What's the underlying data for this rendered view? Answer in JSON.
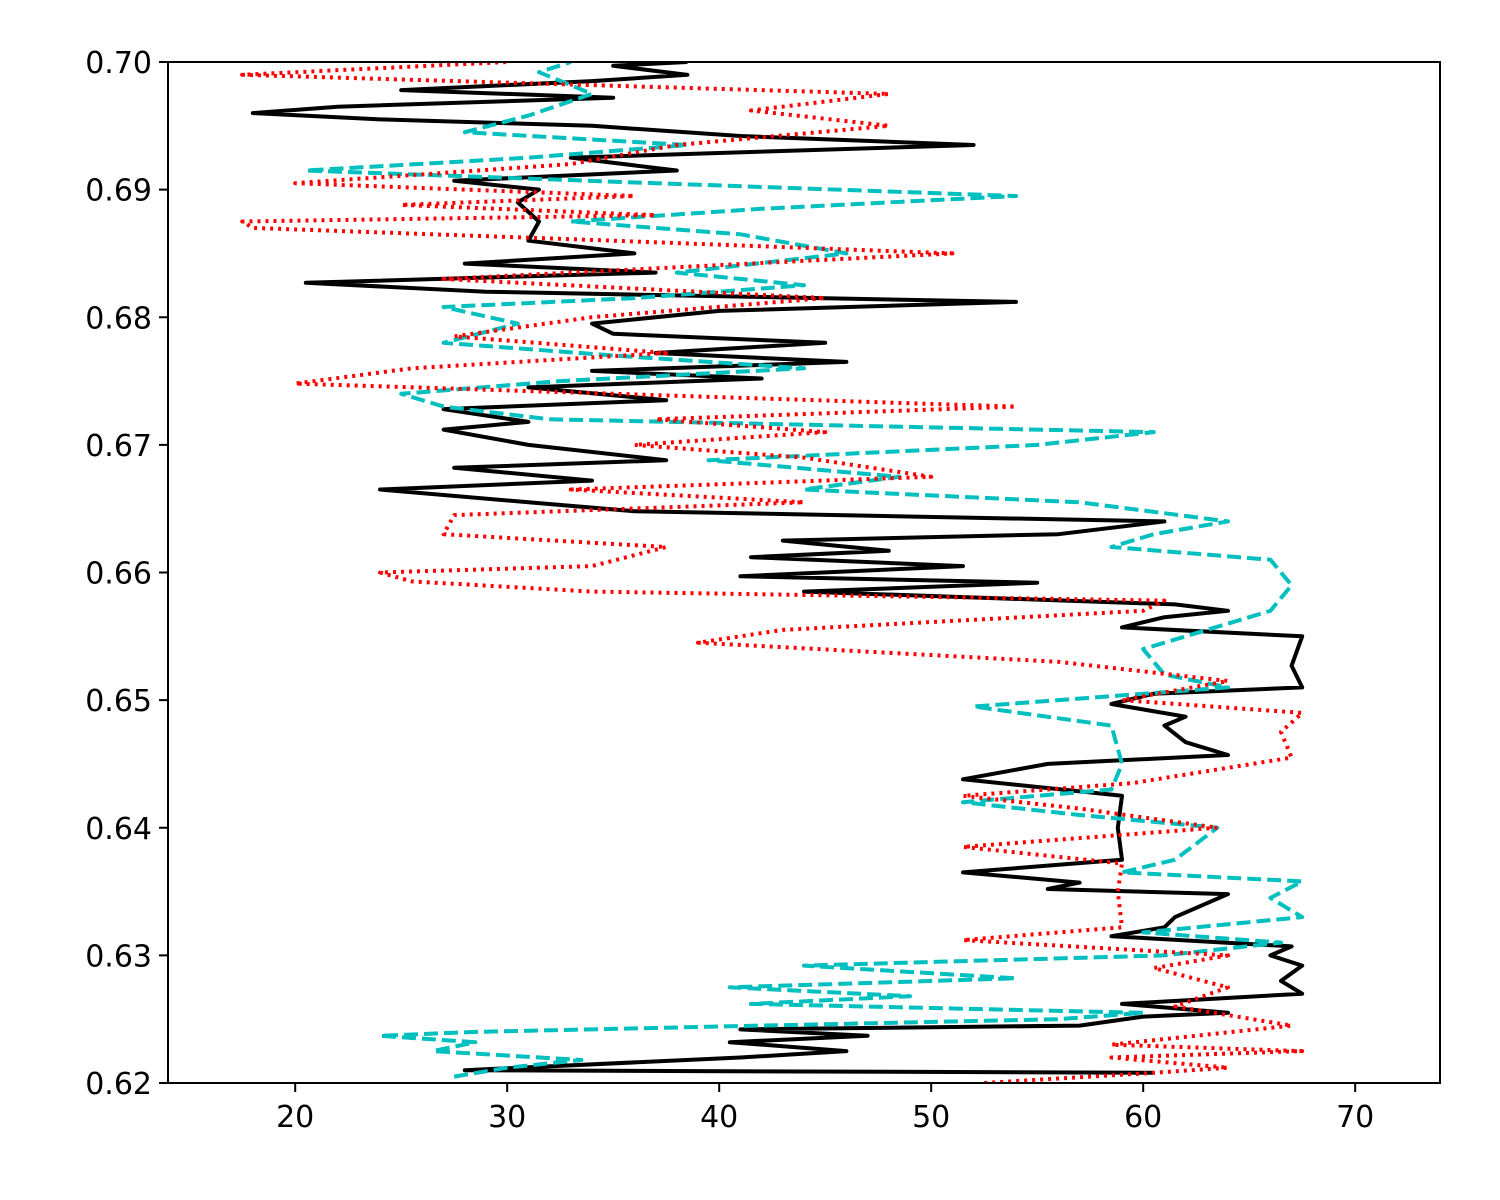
{
  "chart_data": {
    "type": "line",
    "title": "",
    "xlabel": "",
    "ylabel": "",
    "xlim": [
      14,
      74
    ],
    "ylim": [
      0.62,
      0.7
    ],
    "xticks": [
      "20",
      "30",
      "40",
      "50",
      "60",
      "70"
    ],
    "yticks": [
      "0.62",
      "0.63",
      "0.64",
      "0.65",
      "0.66",
      "0.67",
      "0.68",
      "0.69",
      "0.70"
    ],
    "grid": false,
    "legend": "none",
    "series": [
      {
        "key": "black-solid",
        "color": "#000000",
        "linestyle": "solid",
        "points": [
          [
            60.5,
            0.6208
          ],
          [
            28.0,
            0.621
          ],
          [
            41.0,
            0.622
          ],
          [
            46.0,
            0.6225
          ],
          [
            40.5,
            0.6232
          ],
          [
            47.0,
            0.6237
          ],
          [
            41.0,
            0.6242
          ],
          [
            57.0,
            0.6245
          ],
          [
            60.0,
            0.6252
          ],
          [
            64.0,
            0.6255
          ],
          [
            59.0,
            0.6262
          ],
          [
            67.5,
            0.627
          ],
          [
            66.5,
            0.628
          ],
          [
            67.5,
            0.6292
          ],
          [
            66.0,
            0.63
          ],
          [
            67.0,
            0.6307
          ],
          [
            58.5,
            0.6315
          ],
          [
            61.0,
            0.6322
          ],
          [
            61.5,
            0.633
          ],
          [
            64.0,
            0.6348
          ],
          [
            55.5,
            0.6352
          ],
          [
            57.0,
            0.6357
          ],
          [
            51.5,
            0.6365
          ],
          [
            59.0,
            0.6375
          ],
          [
            58.8,
            0.64
          ],
          [
            59.0,
            0.6425
          ],
          [
            51.5,
            0.6438
          ],
          [
            55.5,
            0.645
          ],
          [
            64.0,
            0.6457
          ],
          [
            62.0,
            0.6467
          ],
          [
            61.0,
            0.648
          ],
          [
            62.0,
            0.6487
          ],
          [
            58.5,
            0.6497
          ],
          [
            60.5,
            0.6505
          ],
          [
            67.5,
            0.651
          ],
          [
            67.0,
            0.6527
          ],
          [
            67.5,
            0.655
          ],
          [
            59.0,
            0.6557
          ],
          [
            61.0,
            0.6565
          ],
          [
            64.0,
            0.657
          ],
          [
            61.5,
            0.6575
          ],
          [
            44.0,
            0.6585
          ],
          [
            55.0,
            0.6592
          ],
          [
            41.0,
            0.6597
          ],
          [
            51.5,
            0.6605
          ],
          [
            41.5,
            0.6612
          ],
          [
            48.0,
            0.6617
          ],
          [
            43.0,
            0.6625
          ],
          [
            56.0,
            0.663
          ],
          [
            61.0,
            0.664
          ],
          [
            36.0,
            0.6648
          ],
          [
            31.0,
            0.6655
          ],
          [
            24.0,
            0.6665
          ],
          [
            34.0,
            0.6672
          ],
          [
            27.5,
            0.6682
          ],
          [
            37.5,
            0.6688
          ],
          [
            31.0,
            0.67
          ],
          [
            27.0,
            0.6712
          ],
          [
            31.0,
            0.6718
          ],
          [
            27.0,
            0.6728
          ],
          [
            37.5,
            0.6735
          ],
          [
            31.0,
            0.6745
          ],
          [
            42.0,
            0.6752
          ],
          [
            34.0,
            0.6758
          ],
          [
            46.0,
            0.6765
          ],
          [
            37.0,
            0.6772
          ],
          [
            45.0,
            0.678
          ],
          [
            35.0,
            0.6787
          ],
          [
            34.0,
            0.6795
          ],
          [
            40.0,
            0.6805
          ],
          [
            54.0,
            0.6812
          ],
          [
            29.0,
            0.682
          ],
          [
            20.5,
            0.6827
          ],
          [
            37.0,
            0.6835
          ],
          [
            28.0,
            0.6842
          ],
          [
            36.0,
            0.685
          ],
          [
            31.0,
            0.686
          ],
          [
            31.5,
            0.6875
          ],
          [
            30.5,
            0.689
          ],
          [
            31.5,
            0.69
          ],
          [
            27.5,
            0.6907
          ],
          [
            38.0,
            0.6915
          ],
          [
            33.0,
            0.6925
          ],
          [
            52.0,
            0.6935
          ],
          [
            41.0,
            0.6942
          ],
          [
            34.0,
            0.695
          ],
          [
            24.0,
            0.6955
          ],
          [
            18.0,
            0.696
          ],
          [
            22.0,
            0.6965
          ],
          [
            35.0,
            0.6972
          ],
          [
            25.0,
            0.6978
          ],
          [
            34.0,
            0.6985
          ],
          [
            38.5,
            0.699
          ],
          [
            35.0,
            0.6997
          ],
          [
            38.5,
            0.7
          ]
        ]
      },
      {
        "key": "cyan-dashed",
        "color": "#00bfbf",
        "linestyle": "dashed",
        "points": [
          [
            27.5,
            0.6205
          ],
          [
            30.0,
            0.6212
          ],
          [
            33.5,
            0.6218
          ],
          [
            26.5,
            0.6225
          ],
          [
            28.5,
            0.6232
          ],
          [
            24.0,
            0.6237
          ],
          [
            28.5,
            0.624
          ],
          [
            42.0,
            0.6245
          ],
          [
            56.0,
            0.625
          ],
          [
            60.0,
            0.6255
          ],
          [
            41.5,
            0.6262
          ],
          [
            49.0,
            0.6268
          ],
          [
            40.5,
            0.6275
          ],
          [
            54.0,
            0.6282
          ],
          [
            44.0,
            0.6292
          ],
          [
            61.0,
            0.63
          ],
          [
            66.5,
            0.631
          ],
          [
            60.0,
            0.6318
          ],
          [
            67.5,
            0.633
          ],
          [
            66.0,
            0.6345
          ],
          [
            67.5,
            0.6358
          ],
          [
            59.0,
            0.6365
          ],
          [
            61.5,
            0.6375
          ],
          [
            63.5,
            0.64
          ],
          [
            57.0,
            0.641
          ],
          [
            51.5,
            0.642
          ],
          [
            58.5,
            0.643
          ],
          [
            59.0,
            0.645
          ],
          [
            58.5,
            0.648
          ],
          [
            52.0,
            0.6495
          ],
          [
            64.0,
            0.651
          ],
          [
            61.0,
            0.652
          ],
          [
            60.0,
            0.654
          ],
          [
            66.0,
            0.657
          ],
          [
            67.0,
            0.659
          ],
          [
            66.0,
            0.661
          ],
          [
            58.5,
            0.662
          ],
          [
            60.5,
            0.663
          ],
          [
            64.0,
            0.664
          ],
          [
            57.0,
            0.6655
          ],
          [
            44.0,
            0.6665
          ],
          [
            48.5,
            0.6675
          ],
          [
            39.5,
            0.6688
          ],
          [
            55.0,
            0.67
          ],
          [
            60.5,
            0.671
          ],
          [
            32.0,
            0.672
          ],
          [
            27.0,
            0.673
          ],
          [
            25.0,
            0.674
          ],
          [
            32.5,
            0.675
          ],
          [
            44.0,
            0.676
          ],
          [
            35.0,
            0.677
          ],
          [
            27.0,
            0.678
          ],
          [
            30.5,
            0.6795
          ],
          [
            27.0,
            0.6808
          ],
          [
            36.0,
            0.6815
          ],
          [
            44.0,
            0.6825
          ],
          [
            38.0,
            0.6835
          ],
          [
            46.0,
            0.685
          ],
          [
            41.0,
            0.6865
          ],
          [
            33.0,
            0.6875
          ],
          [
            42.0,
            0.6885
          ],
          [
            54.0,
            0.6895
          ],
          [
            37.0,
            0.6905
          ],
          [
            20.5,
            0.6915
          ],
          [
            31.0,
            0.6925
          ],
          [
            38.5,
            0.6935
          ],
          [
            28.0,
            0.6945
          ],
          [
            31.0,
            0.6958
          ],
          [
            34.0,
            0.6975
          ],
          [
            31.5,
            0.6992
          ],
          [
            33.0,
            0.7
          ]
        ]
      },
      {
        "key": "red-dotted",
        "color": "#ff0000",
        "linestyle": "dotted",
        "points": [
          [
            52.5,
            0.62
          ],
          [
            60.5,
            0.6208
          ],
          [
            64.0,
            0.6212
          ],
          [
            58.5,
            0.622
          ],
          [
            67.5,
            0.6225
          ],
          [
            58.5,
            0.623
          ],
          [
            67.0,
            0.6245
          ],
          [
            61.5,
            0.626
          ],
          [
            64.0,
            0.6275
          ],
          [
            60.5,
            0.629
          ],
          [
            64.0,
            0.63
          ],
          [
            51.5,
            0.6312
          ],
          [
            59.0,
            0.6322
          ],
          [
            58.8,
            0.635
          ],
          [
            59.0,
            0.6372
          ],
          [
            51.5,
            0.6385
          ],
          [
            63.5,
            0.64
          ],
          [
            57.0,
            0.6415
          ],
          [
            51.5,
            0.6425
          ],
          [
            59.5,
            0.6435
          ],
          [
            67.0,
            0.6455
          ],
          [
            66.5,
            0.6475
          ],
          [
            67.5,
            0.649
          ],
          [
            59.0,
            0.65
          ],
          [
            64.0,
            0.6515
          ],
          [
            56.0,
            0.653
          ],
          [
            39.0,
            0.6545
          ],
          [
            43.0,
            0.6555
          ],
          [
            60.0,
            0.657
          ],
          [
            61.0,
            0.6578
          ],
          [
            34.0,
            0.6585
          ],
          [
            25.5,
            0.6593
          ],
          [
            24.0,
            0.66
          ],
          [
            34.0,
            0.6605
          ],
          [
            37.5,
            0.662
          ],
          [
            27.0,
            0.663
          ],
          [
            27.5,
            0.6645
          ],
          [
            44.0,
            0.6655
          ],
          [
            33.0,
            0.6665
          ],
          [
            50.0,
            0.6675
          ],
          [
            44.0,
            0.669
          ],
          [
            36.0,
            0.67
          ],
          [
            45.0,
            0.671
          ],
          [
            37.0,
            0.672
          ],
          [
            54.0,
            0.673
          ],
          [
            20.0,
            0.6748
          ],
          [
            25.5,
            0.676
          ],
          [
            37.5,
            0.6772
          ],
          [
            27.5,
            0.6785
          ],
          [
            34.0,
            0.68
          ],
          [
            45.0,
            0.6815
          ],
          [
            27.0,
            0.683
          ],
          [
            51.0,
            0.685
          ],
          [
            35.0,
            0.686
          ],
          [
            18.0,
            0.687
          ],
          [
            17.5,
            0.6875
          ],
          [
            37.0,
            0.688
          ],
          [
            25.0,
            0.6888
          ],
          [
            36.0,
            0.6895
          ],
          [
            20.0,
            0.6905
          ],
          [
            33.0,
            0.692
          ],
          [
            38.0,
            0.6935
          ],
          [
            48.0,
            0.695
          ],
          [
            41.5,
            0.6962
          ],
          [
            48.0,
            0.6975
          ],
          [
            17.5,
            0.699
          ],
          [
            30.0,
            0.7
          ]
        ]
      }
    ]
  }
}
